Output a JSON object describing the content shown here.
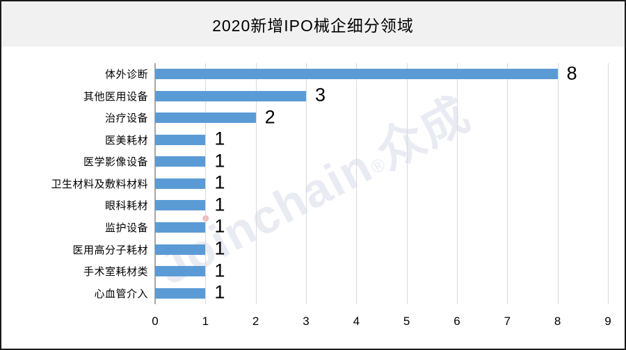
{
  "title": "2020新增IPO械企细分领域",
  "watermark": {
    "latin_before_i": "Jo",
    "latin_i": "i",
    "latin_after_i": "nchain",
    "reg_mark": "®",
    "cjk": "众成"
  },
  "colors": {
    "bar": "#5B9BD5",
    "gridline": "#D9D9D9",
    "axis_line": "#A6A6A6",
    "header_background": "#F1F1F2",
    "panel_background": "#FFFFFF",
    "watermark": "#E9EBF3",
    "watermark_dot": "#EFB9BD",
    "text": "#000000"
  },
  "chart_data": {
    "type": "bar",
    "orientation": "horizontal",
    "title": "2020新增IPO械企细分领域",
    "categories": [
      "体外诊断",
      "其他医用设备",
      "治疗设备",
      "医美耗材",
      "医学影像设备",
      "卫生材料及敷料材料",
      "眼科耗材",
      "监护设备",
      "医用高分子耗材",
      "手术室耗材类",
      "心血管介入"
    ],
    "values": [
      8,
      3,
      2,
      1,
      1,
      1,
      1,
      1,
      1,
      1,
      1
    ],
    "xlabel": "",
    "ylabel": "",
    "xlim": [
      0,
      9
    ],
    "xticks": [
      0,
      1,
      2,
      3,
      4,
      5,
      6,
      7,
      8,
      9
    ],
    "grid": "vertical",
    "data_labels": true,
    "legend": "none"
  }
}
